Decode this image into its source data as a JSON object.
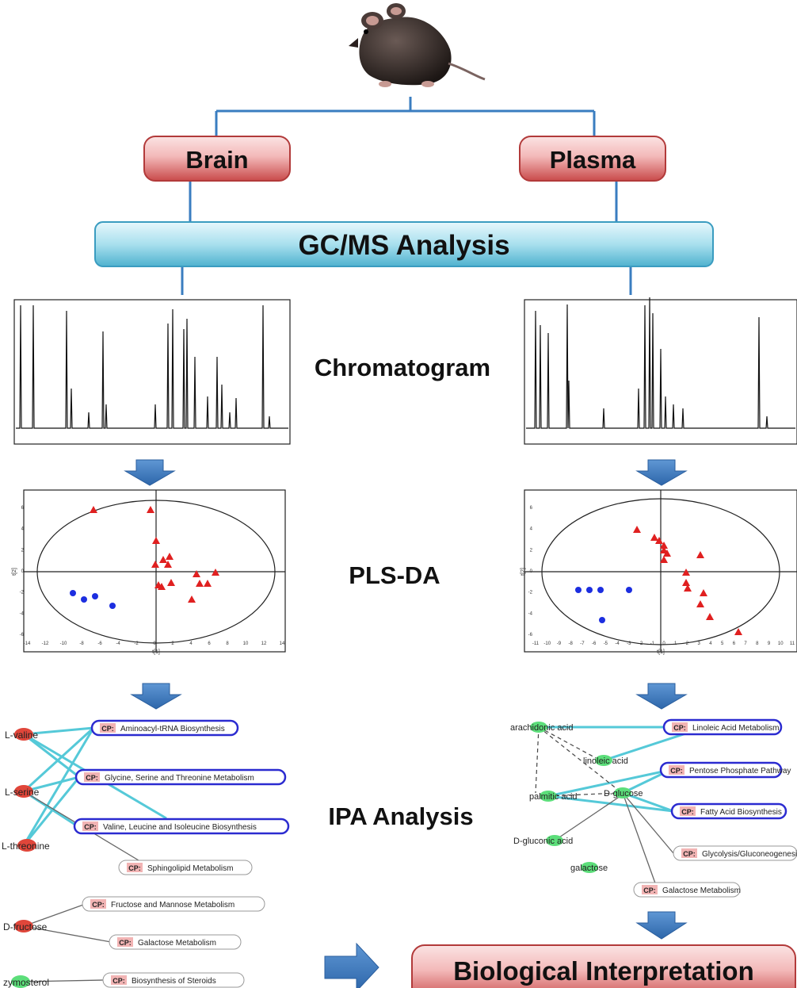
{
  "boxes": {
    "brain": "Brain",
    "plasma": "Plasma",
    "gcms": "GC/MS Analysis",
    "bio": "Biological Interpretation"
  },
  "stages": {
    "chromatogram": "Chromatogram",
    "plsda": "PLS-DA",
    "ipa": "IPA Analysis"
  },
  "colors": {
    "red_box": "#c94a4a",
    "gcms_box": "#5bbad6",
    "arrow": "#3a75b8",
    "connector": "#3a7dc0",
    "ipa_edge": "#55c9d8",
    "cp_border": "#2b2bd0",
    "red_marker": "#e02020",
    "blue_marker": "#1c2ee0",
    "brain_node": "#e0463a",
    "plasma_node": "#5cde7a"
  },
  "left_pls": {
    "x_ticks": [
      "-14",
      "-12",
      "-10",
      "-8",
      "-6",
      "-4",
      "-2",
      "0",
      "2",
      "4",
      "6",
      "8",
      "10",
      "12",
      "14"
    ],
    "y_ticks": [
      "6",
      "4",
      "2",
      "0",
      "-2",
      "-4",
      "-6"
    ],
    "x_label": "t[1]",
    "y_label": "t[2]"
  },
  "right_pls": {
    "x_ticks": [
      "-11",
      "-10",
      "-9",
      "-8",
      "-7",
      "-6",
      "-5",
      "-4",
      "-3",
      "-2",
      "-1",
      "0",
      "1",
      "2",
      "3",
      "4",
      "5",
      "6",
      "7",
      "8",
      "9",
      "10",
      "11"
    ],
    "y_ticks": [
      "6",
      "4",
      "2",
      "0",
      "-2",
      "-4",
      "-6"
    ],
    "x_label": "t[1]",
    "y_label": "t[2]"
  },
  "left_ipa": {
    "nodes": [
      "L-valine",
      "L-serine",
      "L-threonine",
      "D-fructose",
      "zymosterol"
    ],
    "pathways": [
      "Aminoacyl-tRNA Biosynthesis",
      "Glycine, Serine and Threonine Metabolism",
      "Valine, Leucine and Isoleucine Biosynthesis",
      "Sphingolipid Metabolism",
      "Fructose and Mannose Metabolism",
      "Galactose Metabolism",
      "Biosynthesis of Steroids"
    ]
  },
  "right_ipa": {
    "nodes": [
      "arachidonic acid",
      "linoleic acid",
      "palmitic acid",
      "D-glucose",
      "D-gluconic acid",
      "galactose"
    ],
    "pathways": [
      "Linoleic Acid Metabolism",
      "Pentose Phosphate Pathway",
      "Fatty Acid Biosynthesis",
      "Glycolysis/Gluconeogenesis",
      "Galactose Metabolism"
    ]
  },
  "cp_tag": "CP:"
}
